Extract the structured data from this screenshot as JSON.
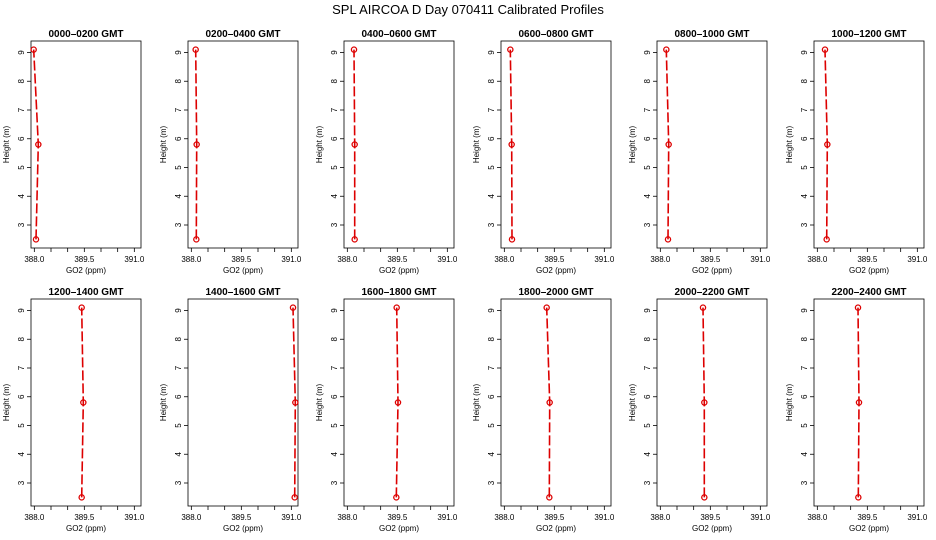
{
  "figure": {
    "title": "SPL AIRCOA D  Day 070411  Calibrated Profiles",
    "xlabel": "GO2 (ppm)",
    "ylabel": "Height (m)",
    "xlim": [
      387.9,
      391.2
    ],
    "ylim": [
      2.2,
      9.4
    ],
    "xticks": [
      "388.0",
      "389.5",
      "391.0"
    ],
    "xtick_values": [
      388.0,
      389.5,
      391.0
    ],
    "xminor_ticks": [
      388.0,
      388.5,
      389.0,
      389.5,
      390.0,
      390.5,
      391.0
    ],
    "yticks": [
      "3",
      "4",
      "5",
      "6",
      "7",
      "8",
      "9"
    ],
    "ytick_values": [
      3,
      4,
      5,
      6,
      7,
      8,
      9
    ],
    "line_color": "#dd0000"
  },
  "chart_data": [
    {
      "type": "line",
      "title": "0000–0200 GMT",
      "heights": [
        2.5,
        5.8,
        9.1
      ],
      "values": [
        388.05,
        388.12,
        387.98
      ]
    },
    {
      "type": "line",
      "title": "0200–0400 GMT",
      "heights": [
        2.5,
        5.8,
        9.1
      ],
      "values": [
        388.15,
        388.16,
        388.13
      ]
    },
    {
      "type": "line",
      "title": "0400–0600 GMT",
      "heights": [
        2.5,
        5.8,
        9.1
      ],
      "values": [
        388.22,
        388.22,
        388.2
      ]
    },
    {
      "type": "line",
      "title": "0600–0800 GMT",
      "heights": [
        2.5,
        5.8,
        9.1
      ],
      "values": [
        388.23,
        388.22,
        388.18
      ]
    },
    {
      "type": "line",
      "title": "0800–1000 GMT",
      "heights": [
        2.5,
        5.8,
        9.1
      ],
      "values": [
        388.23,
        388.25,
        388.18
      ]
    },
    {
      "type": "line",
      "title": "1000–1200 GMT",
      "heights": [
        2.5,
        5.8,
        9.1
      ],
      "values": [
        388.28,
        388.3,
        388.23
      ]
    },
    {
      "type": "line",
      "title": "1200–1400 GMT",
      "heights": [
        2.5,
        5.8,
        9.1
      ],
      "values": [
        389.42,
        389.47,
        389.42
      ]
    },
    {
      "type": "line",
      "title": "1400–1600 GMT",
      "heights": [
        2.5,
        5.8,
        9.1
      ],
      "values": [
        391.1,
        391.12,
        391.05
      ]
    },
    {
      "type": "line",
      "title": "1600–1800 GMT",
      "heights": [
        2.5,
        5.8,
        9.1
      ],
      "values": [
        389.47,
        389.52,
        389.48
      ]
    },
    {
      "type": "line",
      "title": "1800–2000 GMT",
      "heights": [
        2.5,
        5.8,
        9.1
      ],
      "values": [
        389.35,
        389.36,
        389.27
      ]
    },
    {
      "type": "line",
      "title": "2000–2200 GMT",
      "heights": [
        2.5,
        5.8,
        9.1
      ],
      "values": [
        389.32,
        389.32,
        389.28
      ]
    },
    {
      "type": "line",
      "title": "2200–2400 GMT",
      "heights": [
        2.5,
        5.8,
        9.1
      ],
      "values": [
        389.23,
        389.25,
        389.22
      ]
    }
  ]
}
